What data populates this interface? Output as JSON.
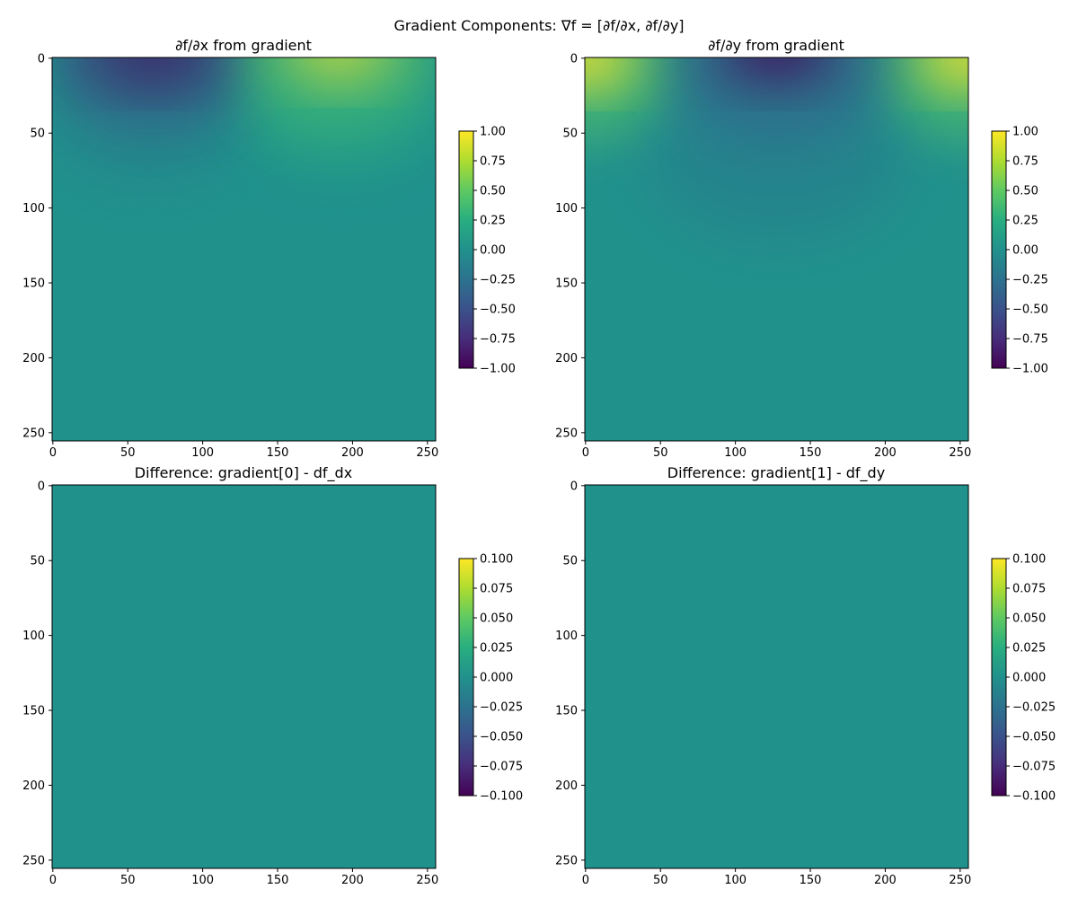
{
  "figure": {
    "suptitle": "Gradient Components: ∇f = [∂f/∂x, ∂f/∂y]"
  },
  "chart_data": [
    {
      "type": "heatmap",
      "title": "∂f/∂x from gradient",
      "colormap": "viridis",
      "grid": false,
      "xlim": [
        0,
        255
      ],
      "ylim": [
        255,
        0
      ],
      "x_ticks": [
        "0",
        "50",
        "100",
        "150",
        "200",
        "250"
      ],
      "y_ticks": [
        "0",
        "50",
        "100",
        "150",
        "200",
        "250"
      ],
      "colorbar": {
        "range": [
          -1.0,
          1.0
        ],
        "ticks": [
          "1.00",
          "0.75",
          "0.50",
          "0.25",
          "0.00",
          "−0.25",
          "−0.50",
          "−0.75",
          "−1.00"
        ]
      },
      "extrema": [
        {
          "x": 67,
          "y": 0,
          "value": -1.0
        },
        {
          "x": 195,
          "y": 0,
          "value": 1.0
        }
      ]
    },
    {
      "type": "heatmap",
      "title": "∂f/∂y from gradient",
      "colormap": "viridis",
      "grid": false,
      "xlim": [
        0,
        255
      ],
      "ylim": [
        255,
        0
      ],
      "x_ticks": [
        "0",
        "50",
        "100",
        "150",
        "200",
        "250"
      ],
      "y_ticks": [
        "0",
        "50",
        "100",
        "150",
        "200",
        "250"
      ],
      "colorbar": {
        "range": [
          -1.0,
          1.0
        ],
        "ticks": [
          "1.00",
          "0.75",
          "0.50",
          "0.25",
          "0.00",
          "−0.25",
          "−0.50",
          "−0.75",
          "−1.00"
        ]
      },
      "extrema": [
        {
          "x": 0,
          "y": 0,
          "value": 1.0
        },
        {
          "x": 130,
          "y": 0,
          "value": -1.0
        },
        {
          "x": 255,
          "y": 0,
          "value": 1.0
        }
      ]
    },
    {
      "type": "heatmap",
      "title": "Difference: gradient[0] - df_dx",
      "colormap": "viridis",
      "grid": false,
      "xlim": [
        0,
        255
      ],
      "ylim": [
        255,
        0
      ],
      "x_ticks": [
        "0",
        "50",
        "100",
        "150",
        "200",
        "250"
      ],
      "y_ticks": [
        "0",
        "50",
        "100",
        "150",
        "200",
        "250"
      ],
      "colorbar": {
        "range": [
          -0.1,
          0.1
        ],
        "ticks": [
          "0.100",
          "0.075",
          "0.050",
          "0.025",
          "0.000",
          "−0.025",
          "−0.050",
          "−0.075",
          "−0.100"
        ]
      },
      "uniform_value": 0.0
    },
    {
      "type": "heatmap",
      "title": "Difference: gradient[1] - df_dy",
      "colormap": "viridis",
      "grid": false,
      "xlim": [
        0,
        255
      ],
      "ylim": [
        255,
        0
      ],
      "x_ticks": [
        "0",
        "50",
        "100",
        "150",
        "200",
        "250"
      ],
      "y_ticks": [
        "0",
        "50",
        "100",
        "150",
        "200",
        "250"
      ],
      "colorbar": {
        "range": [
          -0.1,
          0.1
        ],
        "ticks": [
          "0.100",
          "0.075",
          "0.050",
          "0.025",
          "0.000",
          "−0.025",
          "−0.050",
          "−0.075",
          "−0.100"
        ]
      },
      "uniform_value": 0.0
    }
  ]
}
